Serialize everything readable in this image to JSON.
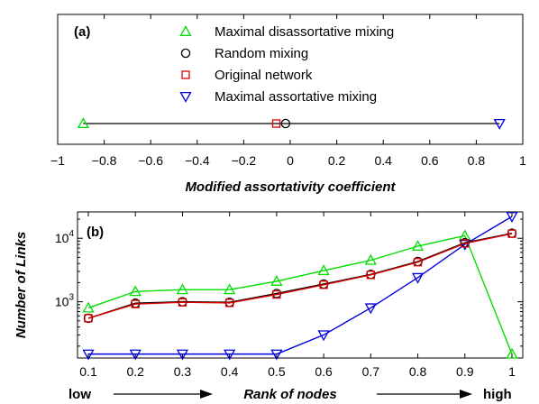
{
  "chart_data": [
    {
      "type": "scatter",
      "panel_label": "(a)",
      "xlabel": "Modified assortativity coefficient",
      "ylabel": "",
      "xlim": [
        -1,
        1
      ],
      "xticks": [
        -1,
        -0.8,
        -0.6,
        -0.4,
        -0.2,
        0,
        0.2,
        0.4,
        0.6,
        0.8,
        1
      ],
      "xtick_labels": [
        "−1",
        "−0.8",
        "−0.6",
        "−0.4",
        "−0.2",
        "0",
        "0.2",
        "0.4",
        "0.6",
        "0.8",
        "1"
      ],
      "legend_position": "top-center",
      "line_segment": [
        -0.89,
        0.9
      ],
      "series": [
        {
          "name": "Maximal disassortative mixing",
          "marker": "triangle-up",
          "color": "#00dd00",
          "x": -0.89
        },
        {
          "name": "Random mixing",
          "marker": "circle",
          "color": "#000000",
          "x": -0.02
        },
        {
          "name": "Original network",
          "marker": "square",
          "color": "#dd0000",
          "x": -0.06
        },
        {
          "name": "Maximal assortative mixing",
          "marker": "triangle-down",
          "color": "#0000dd",
          "x": 0.9
        }
      ]
    },
    {
      "type": "line",
      "panel_label": "(b)",
      "xlabel": "Rank of nodes",
      "ylabel": "Number of Links",
      "y_scale": "log",
      "ylim": [
        130,
        26000
      ],
      "yticks": [
        1000,
        10000
      ],
      "ytick_labels": [
        {
          "base": "10",
          "exp": "3"
        },
        {
          "base": "10",
          "exp": "4"
        }
      ],
      "xlim": [
        0.1,
        1
      ],
      "x": [
        0.1,
        0.2,
        0.3,
        0.4,
        0.5,
        0.6,
        0.7,
        0.8,
        0.9,
        1
      ],
      "xtick_labels": [
        "0.1",
        "0.2",
        "0.3",
        "0.4",
        "0.5",
        "0.6",
        "0.7",
        "0.8",
        "0.9",
        "1"
      ],
      "x_end_labels": {
        "low": "low",
        "high": "high"
      },
      "series": [
        {
          "name": "Maximal disassortative mixing",
          "marker": "triangle-up",
          "color": "#00dd00",
          "values": [
            800,
            1450,
            1550,
            1550,
            2100,
            3100,
            4500,
            7500,
            11000,
            150
          ]
        },
        {
          "name": "Random mixing",
          "marker": "circle",
          "color": "#000000",
          "values": [
            550,
            950,
            1000,
            980,
            1350,
            1900,
            2700,
            4300,
            8500,
            12000
          ]
        },
        {
          "name": "Original network",
          "marker": "square",
          "color": "#dd0000",
          "values": [
            550,
            920,
            980,
            960,
            1300,
            1850,
            2650,
            4200,
            8300,
            11800
          ]
        },
        {
          "name": "Maximal assortative mixing",
          "marker": "triangle-down",
          "color": "#0000dd",
          "values": [
            150,
            150,
            150,
            150,
            150,
            300,
            800,
            2400,
            8000,
            22000
          ]
        }
      ]
    }
  ]
}
